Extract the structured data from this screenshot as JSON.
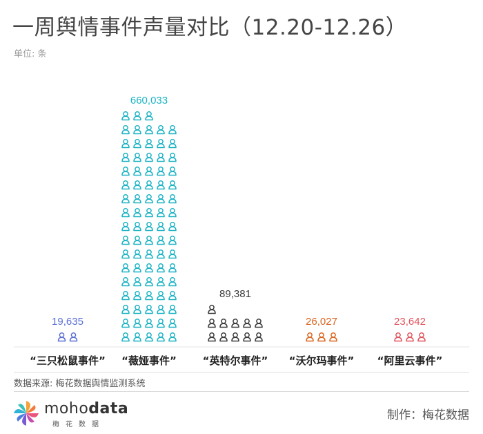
{
  "header": {
    "title": "一周舆情事件声量对比（12.20-12.26）",
    "unit": "单位: 条"
  },
  "chart_data": {
    "type": "bar",
    "title": "一周舆情事件声量对比（12.20-12.26）",
    "ylabel": "单位: 条",
    "categories": [
      "“三只松鼠事件”",
      "“薇娅事件”",
      "“英特尔事件”",
      "“沃尔玛事件”",
      "“阿里云事件”"
    ],
    "values": [
      19635,
      660033,
      89381,
      26027,
      23642
    ],
    "value_labels": [
      "19,635",
      "660,033",
      "89,381",
      "26,027",
      "23,642"
    ],
    "colors": [
      "#5b6fd6",
      "#1bb3c4",
      "#3a3a3a",
      "#d9641e",
      "#e0555c"
    ],
    "encoding": "pictograph",
    "icon": "person-icon",
    "grid": false,
    "legend": "none"
  },
  "footer": {
    "source": "数据来源: 梅花数据舆情监测系统",
    "logo_word_light": "moho",
    "logo_word_bold": "data",
    "logo_sub": "梅花数据",
    "maker": "制作：梅花数据"
  }
}
